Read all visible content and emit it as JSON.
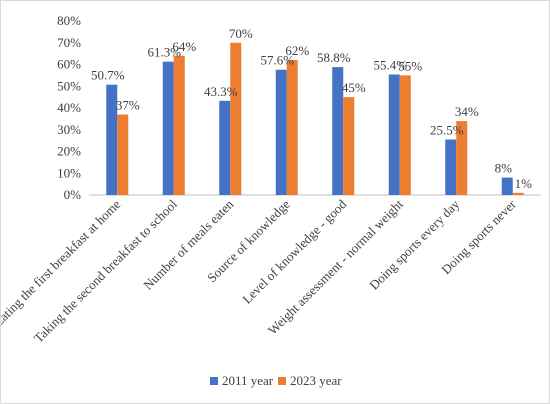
{
  "chart_data": {
    "type": "bar",
    "categories": [
      "Eating the first breakfast at home",
      "Taking the second breakfast to school",
      "Number of meals eaten",
      "Source of knowledge",
      "Level of knowledge - good",
      "Weight assessment - normal weight",
      "Doing sports every day",
      "Doing sports never"
    ],
    "series": [
      {
        "name": "2011 year",
        "color": "#4472c4",
        "values": [
          50.7,
          61.3,
          43.3,
          57.6,
          58.8,
          55.4,
          25.5,
          8
        ],
        "labels": [
          "50.7%",
          "61.3%",
          "43.3%",
          "57.6%",
          "58.8%",
          "55.4%",
          "25.5%",
          "8%"
        ]
      },
      {
        "name": "2023 year",
        "color": "#ed7d31",
        "values": [
          37,
          64,
          70,
          62,
          45,
          55,
          34,
          1
        ],
        "labels": [
          "37%",
          "64%",
          "70%",
          "62%",
          "45%",
          "55%",
          "34%",
          "1%"
        ]
      }
    ],
    "yticks": [
      "0%",
      "10%",
      "20%",
      "30%",
      "40%",
      "50%",
      "60%",
      "70%",
      "80%"
    ],
    "ylim": [
      0,
      80
    ],
    "title": "",
    "xlabel": "",
    "ylabel": "",
    "legend": "bottom",
    "grid": false
  }
}
